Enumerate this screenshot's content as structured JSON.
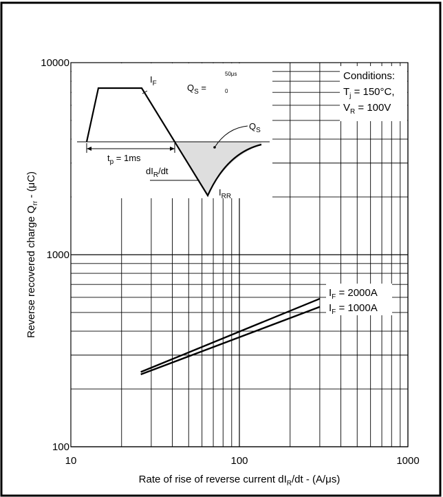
{
  "chart_data": {
    "type": "line",
    "title": "",
    "xlabel": "Rate of rise of reverse current dI_R/dt - (A/μs)",
    "ylabel": "Reverse recovered charge Q_rr - (μC)",
    "x_scale": "log",
    "y_scale": "log",
    "xlim": [
      10,
      1000
    ],
    "ylim": [
      100,
      10000
    ],
    "x_ticks": [
      "10",
      "100",
      "1000"
    ],
    "y_ticks": [
      "100",
      "1000",
      "10000"
    ],
    "grid": true,
    "series": [
      {
        "name": "I_F = 2000A",
        "x": [
          26,
          300
        ],
        "y": [
          245,
          590
        ]
      },
      {
        "name": "I_F = 1000A",
        "x": [
          26,
          300
        ],
        "y": [
          238,
          535
        ]
      }
    ],
    "legend_position": "right",
    "conditions": {
      "heading": "Conditions:",
      "line1": "T_j = 150°C,",
      "line2": "V_R = 100V"
    },
    "inset": {
      "i_f": "I_F",
      "qs_eq": "Q_S =",
      "qs_upper": "50μs",
      "qs_lower": "0",
      "qs": "Q_S",
      "tp": "t_p = 1ms",
      "didt": "dI_R/dt",
      "irr": "I_RR"
    }
  }
}
